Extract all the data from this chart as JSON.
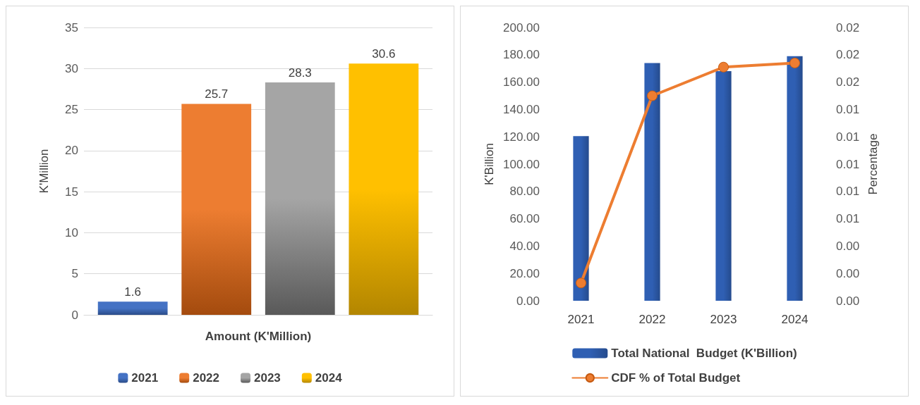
{
  "chart_data": [
    {
      "type": "bar",
      "categories": [
        "Amount (K'Million)"
      ],
      "ylabel": "K'Million",
      "series": [
        {
          "name": "2021",
          "color": "#4472c4",
          "values": [
            1.6
          ]
        },
        {
          "name": "2022",
          "color": "#ed7d31",
          "values": [
            25.7
          ]
        },
        {
          "name": "2023",
          "color": "#a5a5a5",
          "values": [
            28.3
          ]
        },
        {
          "name": "2024",
          "color": "#ffc000",
          "values": [
            30.6
          ]
        }
      ],
      "ylim": [
        0,
        35
      ],
      "yticks": [
        0,
        5,
        10,
        15,
        20,
        25,
        30,
        35
      ],
      "grid": "y",
      "legend": "bottom",
      "data_labels": true
    },
    {
      "type": "bar",
      "categories": [
        "2021",
        "2022",
        "2023",
        "2024"
      ],
      "ylabel": "K'Billion",
      "y2label": "Percentage",
      "series": [
        {
          "name": "Total National  Budget (K'Billion)",
          "type": "bar",
          "color": "#2f5fb3",
          "values": [
            120.5,
            174,
            168,
            179
          ]
        },
        {
          "name": "CDF % of Total Budget",
          "type": "line",
          "axis": "y2",
          "color": "#ed7d31",
          "values": [
            0.0013,
            0.015,
            0.0171,
            0.0174
          ]
        }
      ],
      "ylim": [
        0,
        200
      ],
      "yticks": [
        {
          "value": 0,
          "label": "0.00"
        },
        {
          "value": 20,
          "label": "20.00"
        },
        {
          "value": 40,
          "label": "40.00"
        },
        {
          "value": 60,
          "label": "60.00"
        },
        {
          "value": 80,
          "label": "80.00"
        },
        {
          "value": 100,
          "label": "100.00"
        },
        {
          "value": 120,
          "label": "120.00"
        },
        {
          "value": 140,
          "label": "140.00"
        },
        {
          "value": 160,
          "label": "160.00"
        },
        {
          "value": 180,
          "label": "180.00"
        },
        {
          "value": 200,
          "label": "200.00"
        }
      ],
      "y2lim": [
        0,
        0.02
      ],
      "y2ticks": [
        {
          "value": 0,
          "label": "0.00"
        },
        {
          "value": 0.002,
          "label": "0.00"
        },
        {
          "value": 0.004,
          "label": "0.00"
        },
        {
          "value": 0.006,
          "label": "0.01"
        },
        {
          "value": 0.008,
          "label": "0.01"
        },
        {
          "value": 0.01,
          "label": "0.01"
        },
        {
          "value": 0.012,
          "label": "0.01"
        },
        {
          "value": 0.014,
          "label": "0.01"
        },
        {
          "value": 0.016,
          "label": "0.02"
        },
        {
          "value": 0.018,
          "label": "0.02"
        },
        {
          "value": 0.02,
          "label": "0.02"
        }
      ],
      "grid": false,
      "legend": "bottom",
      "marker": "circle",
      "line_style": "solid"
    }
  ]
}
